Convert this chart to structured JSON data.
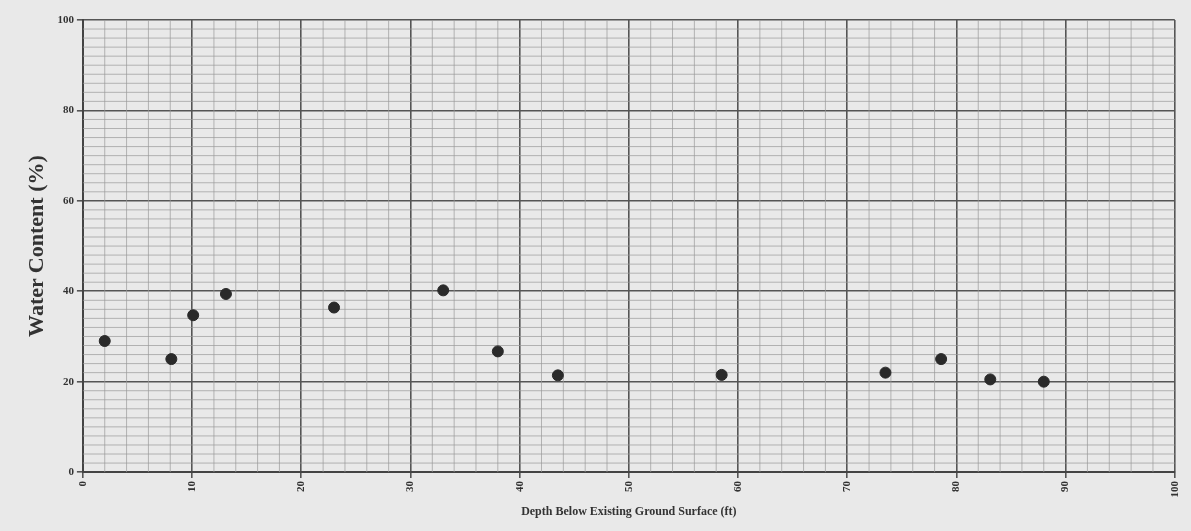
{
  "chart_data": {
    "type": "scatter",
    "xlabel": "Depth Below Existing Ground Surface (ft)",
    "ylabel": "Water Content (%)",
    "x": [
      2,
      8.1,
      10.1,
      13.1,
      23,
      33,
      38,
      43.5,
      58.5,
      73.5,
      78.6,
      83.1,
      88
    ],
    "series": [
      {
        "color": "#2a2a2a",
        "values": [
          29,
          25,
          34.7,
          39.4,
          36.4,
          40.2,
          26.7,
          21.4,
          21.5,
          22,
          25,
          20.5,
          20
        ]
      }
    ],
    "xlim": [
      0,
      100
    ],
    "xticks": [
      0,
      10,
      20,
      30,
      40,
      50,
      60,
      70,
      80,
      90,
      100
    ],
    "ylim": [
      0,
      100
    ],
    "yticks": [
      0,
      20,
      40,
      60,
      80,
      100
    ],
    "grid": true,
    "legend": false,
    "marker": "circle"
  }
}
